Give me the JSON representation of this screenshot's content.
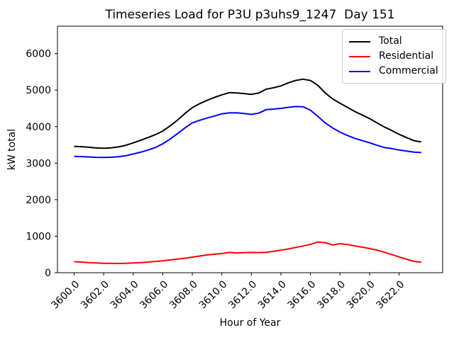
{
  "figure": {
    "background": "#ffffff"
  },
  "chart_data": {
    "type": "line",
    "title": "Timeseries Load for P3U p3uhs9_1247  Day 151",
    "xlabel": "Hour of Year",
    "ylabel": "kW total",
    "grid": false,
    "legend_position": "upper right",
    "xlim": [
      3598.87,
      3624.95
    ],
    "ylim": [
      0,
      6750
    ],
    "x_tick_values": [
      3600,
      3602,
      3604,
      3606,
      3608,
      3610,
      3612,
      3614,
      3616,
      3618,
      3620,
      3622
    ],
    "x_tick_labels": [
      "3600.0",
      "3602.0",
      "3604.0",
      "3606.0",
      "3608.0",
      "3610.0",
      "3612.0",
      "3614.0",
      "3616.0",
      "3618.0",
      "3620.0",
      "3622.0"
    ],
    "y_ticks": [
      0,
      1000,
      2000,
      3000,
      4000,
      5000,
      6000
    ],
    "x_start": 3600.0,
    "x_step": 0.5,
    "series": [
      {
        "name": "Total",
        "color": "#000000",
        "values": [
          3460,
          3450,
          3435,
          3415,
          3410,
          3420,
          3445,
          3490,
          3555,
          3625,
          3700,
          3780,
          3880,
          4020,
          4180,
          4360,
          4520,
          4630,
          4720,
          4800,
          4870,
          4930,
          4920,
          4905,
          4885,
          4920,
          5025,
          5065,
          5115,
          5200,
          5265,
          5300,
          5265,
          5130,
          4920,
          4760,
          4640,
          4530,
          4415,
          4320,
          4220,
          4105,
          3990,
          3895,
          3790,
          3700,
          3615,
          3580
        ]
      },
      {
        "name": "Residential",
        "color": "#ff0000",
        "values": [
          300,
          290,
          278,
          265,
          258,
          254,
          254,
          258,
          266,
          276,
          290,
          308,
          328,
          350,
          372,
          398,
          426,
          456,
          486,
          506,
          524,
          556,
          542,
          550,
          554,
          550,
          558,
          584,
          616,
          650,
          692,
          732,
          778,
          840,
          822,
          760,
          795,
          772,
          735,
          700,
          662,
          618,
          560,
          498,
          432,
          368,
          312,
          288
        ]
      },
      {
        "name": "Commercial",
        "color": "#0000ff",
        "values": [
          3185,
          3180,
          3170,
          3160,
          3158,
          3162,
          3175,
          3205,
          3250,
          3300,
          3360,
          3430,
          3530,
          3660,
          3810,
          3965,
          4105,
          4175,
          4235,
          4290,
          4350,
          4375,
          4380,
          4360,
          4335,
          4370,
          4465,
          4480,
          4500,
          4530,
          4550,
          4545,
          4450,
          4280,
          4100,
          3965,
          3850,
          3760,
          3680,
          3620,
          3560,
          3490,
          3430,
          3398,
          3360,
          3330,
          3302,
          3290
        ]
      }
    ]
  }
}
